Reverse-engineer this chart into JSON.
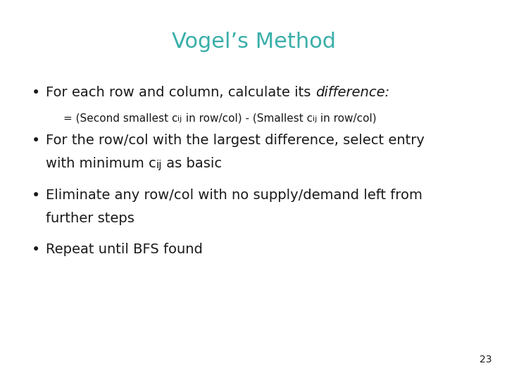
{
  "title": "Vogel’s Method",
  "title_color": "#3AAFA9",
  "title_fontsize": 22,
  "background_color": "#ffffff",
  "text_color": "#1a1a1a",
  "page_number": "23",
  "main_fontsize": 14,
  "sub_fontsize": 11,
  "page_fontsize": 10,
  "bullet1_normal": "For each row and column, calculate its ",
  "bullet1_italic": "difference",
  "bullet1_colon": ":",
  "bullet1_sub": "= (Second smallest c",
  "bullet1_sub_ij": "ij",
  "bullet1_sub_mid": " in row/col) - (Smallest c",
  "bullet1_sub_ij2": "ij",
  "bullet1_sub_end": " in row/col)",
  "bullet2_line1": "For the row/col with the largest difference, select entry",
  "bullet2_line2_pre": "with minimum c",
  "bullet2_line2_ij": "ij",
  "bullet2_line2_post": " as basic",
  "bullet3_line1": "Eliminate any row/col with no supply/demand left from",
  "bullet3_line2": "further steps",
  "bullet4": "Repeat until BFS found"
}
